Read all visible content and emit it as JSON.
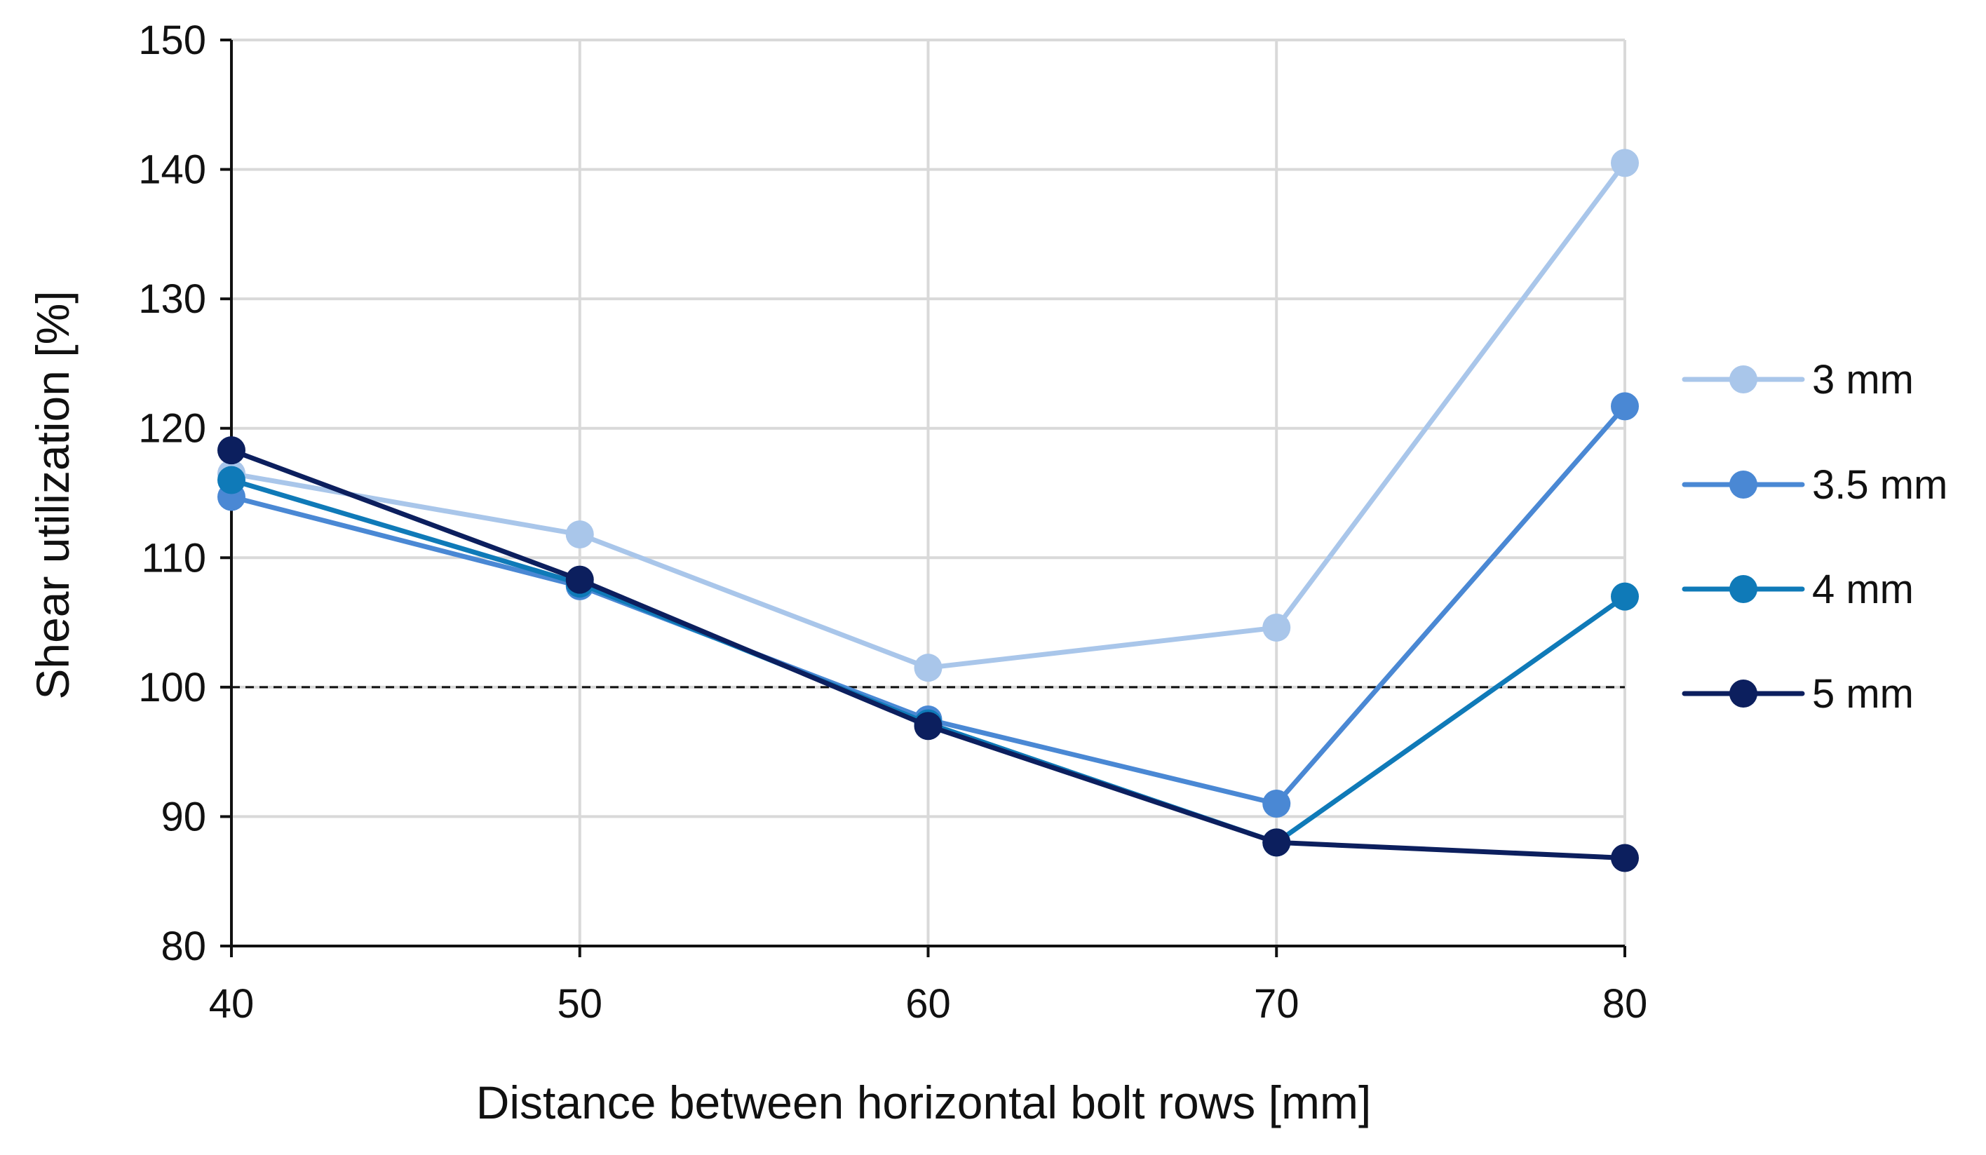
{
  "chart_data": {
    "type": "line",
    "title": "",
    "xlabel": "Distance between horizontal bolt rows [mm]",
    "ylabel": "Shear utilization [%]",
    "x": [
      40,
      50,
      60,
      70,
      80
    ],
    "xlim": [
      40,
      80
    ],
    "ylim": [
      80,
      150
    ],
    "xticks": [
      40,
      50,
      60,
      70,
      80
    ],
    "yticks": [
      80,
      90,
      100,
      110,
      120,
      130,
      140,
      150
    ],
    "xtick_labels": [
      "40",
      "50",
      "60",
      "70",
      "80"
    ],
    "ytick_labels": [
      "80",
      "90",
      "100",
      "110",
      "120",
      "130",
      "140",
      "150"
    ],
    "grid": "vertical and horizontal",
    "reference_line": {
      "y": 100,
      "style": "dashed"
    },
    "legend_position": "right",
    "series": [
      {
        "name": "3 mm",
        "color": "#a9c6ea",
        "values": [
          116.5,
          111.8,
          101.5,
          104.6,
          140.5
        ]
      },
      {
        "name": "3.5 mm",
        "color": "#4a88d4",
        "values": [
          114.7,
          107.8,
          97.5,
          91.0,
          121.7
        ]
      },
      {
        "name": "4 mm",
        "color": "#0f7ab8",
        "values": [
          116.0,
          108.0,
          97.2,
          88.0,
          107.0
        ]
      },
      {
        "name": "5 mm",
        "color": "#0c1f5e",
        "values": [
          118.3,
          108.3,
          97.0,
          88.0,
          86.8
        ]
      }
    ]
  }
}
